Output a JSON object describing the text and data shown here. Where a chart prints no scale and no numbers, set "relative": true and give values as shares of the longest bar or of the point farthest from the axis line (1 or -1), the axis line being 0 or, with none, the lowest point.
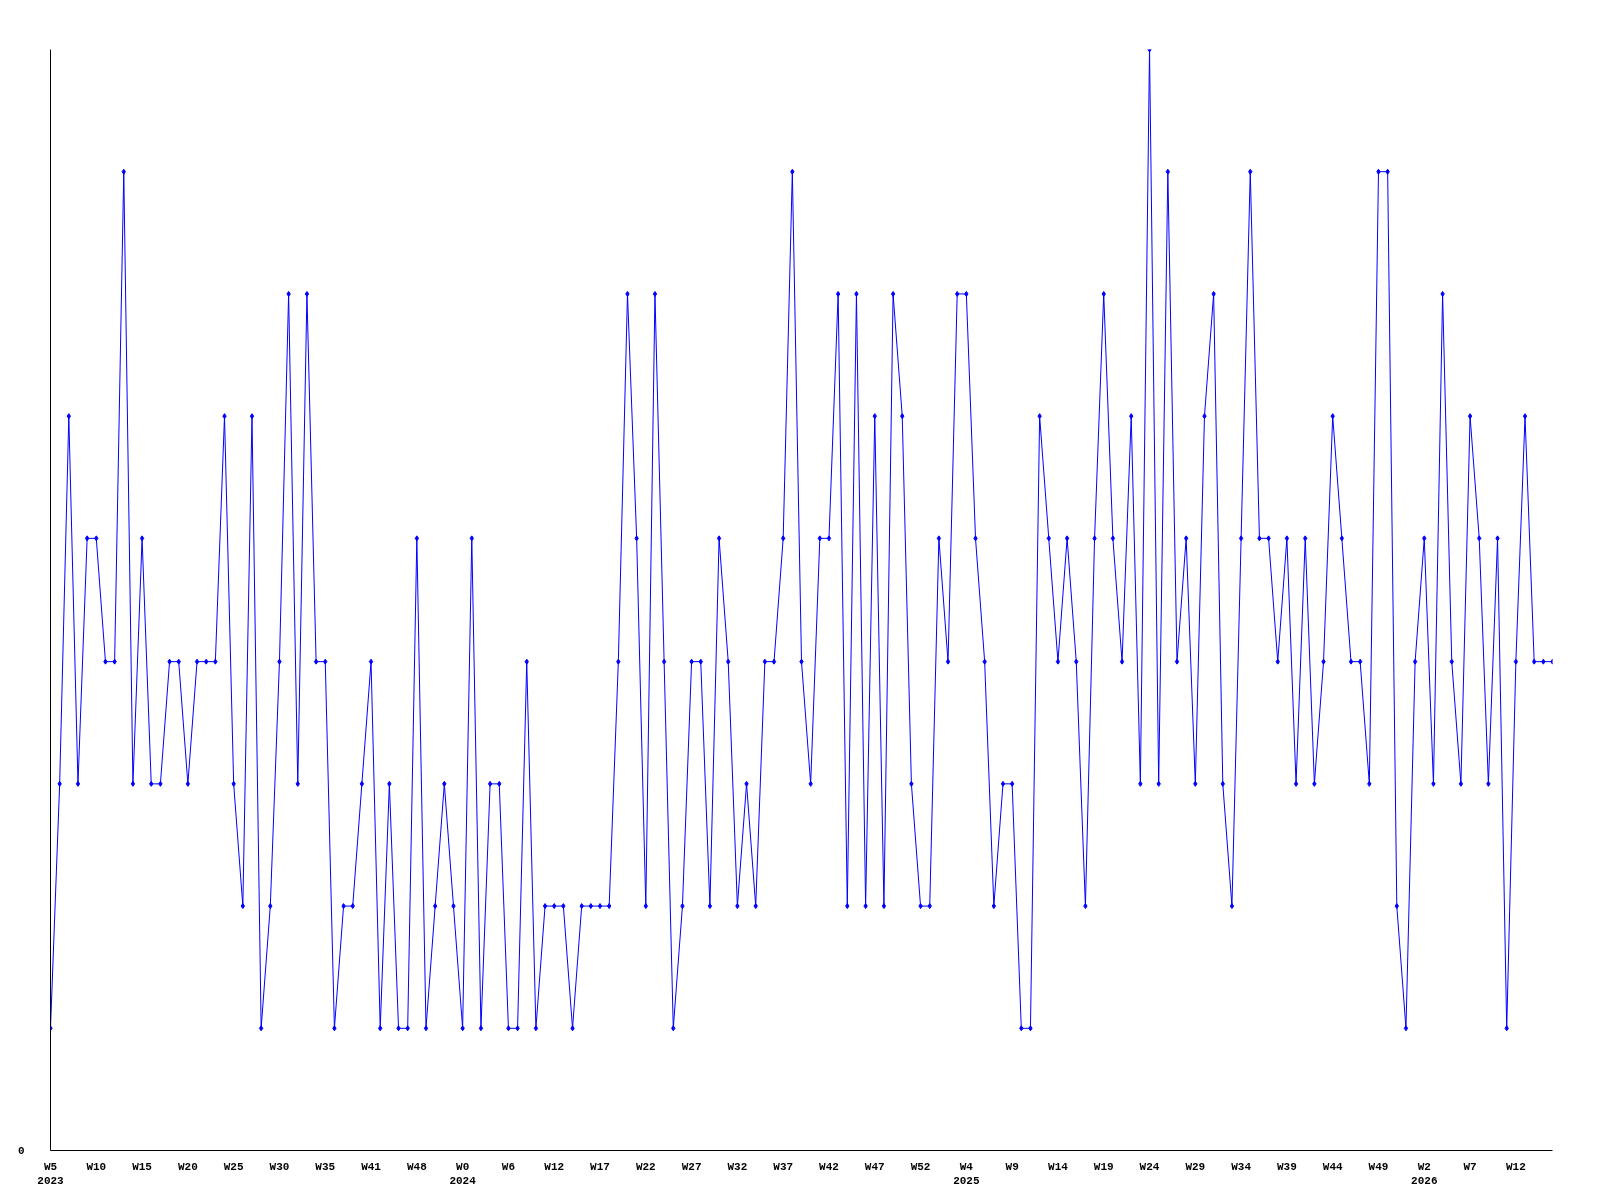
{
  "chart_data": {
    "type": "line",
    "relative": true,
    "annotations": [
      "0"
    ],
    "marker": "diamond",
    "line_style": "solid",
    "categories": [
      "W5\n2023",
      null,
      null,
      null,
      null,
      "W10",
      null,
      null,
      null,
      null,
      "W15",
      null,
      null,
      null,
      null,
      "W20",
      null,
      null,
      null,
      null,
      "W25",
      null,
      null,
      null,
      null,
      "W30",
      null,
      null,
      null,
      null,
      "W35",
      null,
      null,
      null,
      null,
      "W41",
      null,
      null,
      null,
      null,
      "W48",
      null,
      null,
      null,
      null,
      "W0\n2024",
      null,
      null,
      null,
      null,
      "W6",
      null,
      null,
      null,
      null,
      "W12",
      null,
      null,
      null,
      null,
      "W17",
      null,
      null,
      null,
      null,
      "W22",
      null,
      null,
      null,
      null,
      "W27",
      null,
      null,
      null,
      null,
      "W32",
      null,
      null,
      null,
      null,
      "W37",
      null,
      null,
      null,
      null,
      "W42",
      null,
      null,
      null,
      null,
      "W47",
      null,
      null,
      null,
      null,
      "W52",
      null,
      null,
      null,
      null,
      "W4\n2025",
      null,
      null,
      null,
      null,
      "W9",
      null,
      null,
      null,
      null,
      "W14",
      null,
      null,
      null,
      null,
      "W19",
      null,
      null,
      null,
      null,
      "W24",
      null,
      null,
      null,
      null,
      "W29",
      null,
      null,
      null,
      null,
      "W34",
      null,
      null,
      null,
      null,
      "W39",
      null,
      null,
      null,
      null,
      "W44",
      null,
      null,
      null,
      null,
      "W49",
      null,
      null,
      null,
      null,
      "W2\n2026",
      null,
      null,
      null,
      null,
      "W7",
      null,
      null,
      null,
      null,
      "W12",
      null,
      null,
      null,
      null
    ],
    "series": [
      {
        "color": "#0000ff",
        "values": [
          0.111,
          0.333,
          0.667,
          0.333,
          0.556,
          0.556,
          0.444,
          0.444,
          0.889,
          0.333,
          0.556,
          0.333,
          0.333,
          0.444,
          0.444,
          0.333,
          0.444,
          0.444,
          0.444,
          0.667,
          0.333,
          0.222,
          0.667,
          0.111,
          0.222,
          0.444,
          0.778,
          0.333,
          0.778,
          0.444,
          0.444,
          0.111,
          0.222,
          0.222,
          0.333,
          0.444,
          0.111,
          0.333,
          0.111,
          0.111,
          0.556,
          0.111,
          0.222,
          0.333,
          0.222,
          0.111,
          0.556,
          0.111,
          0.333,
          0.333,
          0.111,
          0.111,
          0.444,
          0.111,
          0.222,
          0.222,
          0.222,
          0.111,
          0.222,
          0.222,
          0.222,
          0.222,
          0.444,
          0.778,
          0.556,
          0.222,
          0.778,
          0.444,
          0.111,
          0.222,
          0.444,
          0.444,
          0.222,
          0.556,
          0.444,
          0.222,
          0.333,
          0.222,
          0.444,
          0.444,
          0.556,
          0.889,
          0.444,
          0.333,
          0.556,
          0.556,
          0.778,
          0.222,
          0.778,
          0.222,
          0.667,
          0.222,
          0.778,
          0.667,
          0.333,
          0.222,
          0.222,
          0.556,
          0.444,
          0.778,
          0.778,
          0.556,
          0.444,
          0.222,
          0.333,
          0.333,
          0.111,
          0.111,
          0.667,
          0.556,
          0.444,
          0.556,
          0.444,
          0.222,
          0.556,
          0.778,
          0.556,
          0.444,
          0.667,
          0.333,
          1,
          0.333,
          0.889,
          0.444,
          0.556,
          0.333,
          0.667,
          0.778,
          0.333,
          0.222,
          0.556,
          0.889,
          0.556,
          0.556,
          0.444,
          0.556,
          0.333,
          0.556,
          0.333,
          0.444,
          0.667,
          0.556,
          0.444,
          0.444,
          0.333,
          0.889,
          0.889,
          0.222,
          0.111,
          0.444,
          0.556,
          0.333,
          0.778,
          0.444,
          0.333,
          0.667,
          0.556,
          0.333,
          0.556,
          0.111,
          0.444,
          0.667,
          0.444,
          0.444,
          0.444
        ]
      }
    ]
  }
}
